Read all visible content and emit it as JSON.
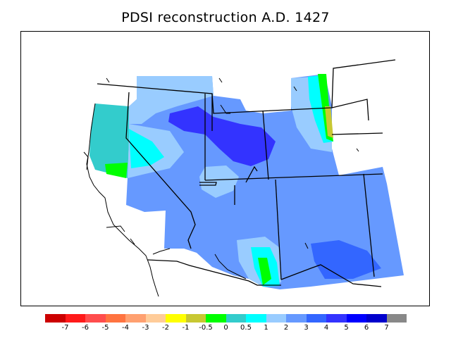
{
  "title": "PDSI reconstruction A.D. 1427",
  "colors": {
    "frame": "#000000",
    "border_lines": "#000000",
    "background": "#ffffff"
  },
  "legend": {
    "colors": [
      "#cc0000",
      "#ff1a1a",
      "#ff4d4d",
      "#ff7340",
      "#ffa070",
      "#ffcc99",
      "#ffff00",
      "#c8c832",
      "#00ff00",
      "#33cccc",
      "#00ffff",
      "#99ccff",
      "#6699ff",
      "#3366ff",
      "#3333ff",
      "#0000ff",
      "#0000cc",
      "#888888"
    ],
    "labels": [
      "-7",
      "-6",
      "-5",
      "-4",
      "-3",
      "-2",
      "-1",
      "-0.5",
      "0",
      "0.5",
      "1",
      "2",
      "3",
      "4",
      "5",
      "6",
      "7"
    ]
  },
  "map_data": {
    "variable": "PDSI",
    "year": "A.D. 1427",
    "dominant_value_range": [
      2,
      5
    ],
    "dry_pockets": [
      "northern California coast",
      "southern Arizona",
      "eastern Wyoming"
    ]
  }
}
